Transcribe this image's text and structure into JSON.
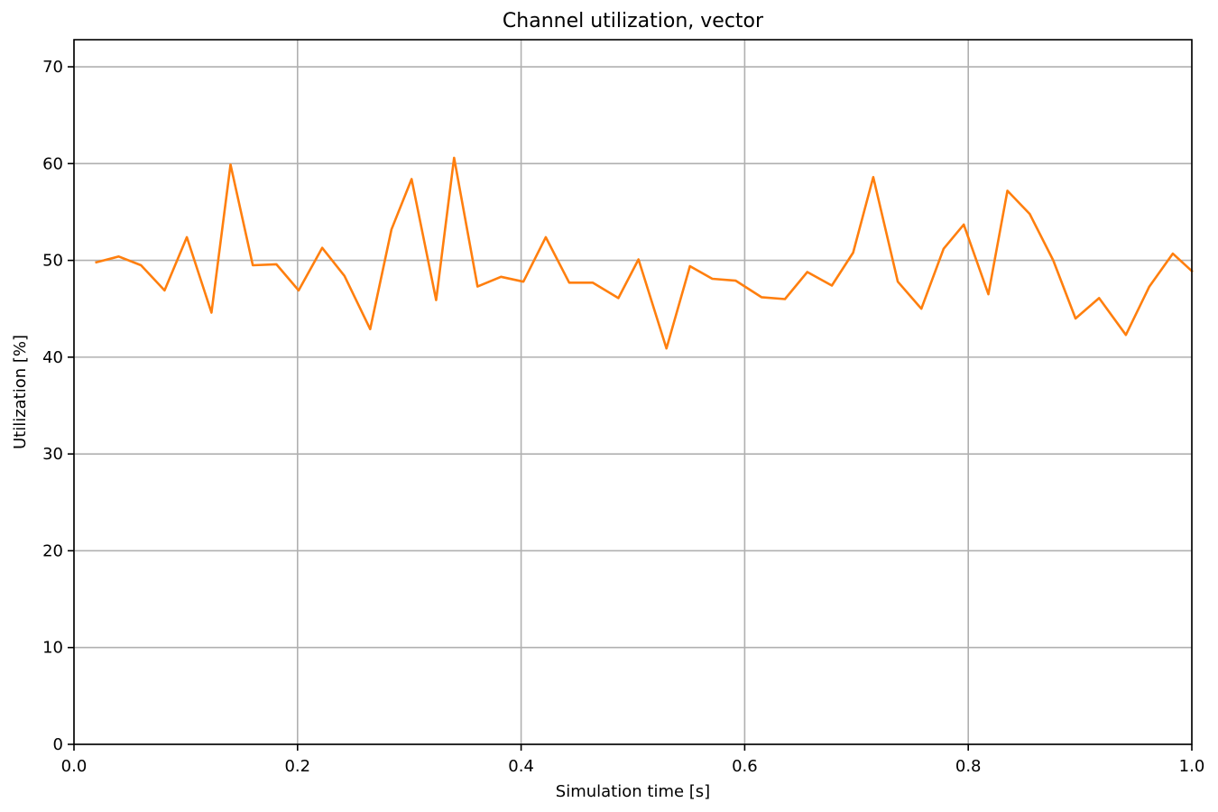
{
  "chart_data": {
    "type": "line",
    "title": "Channel utilization, vector",
    "xlabel": "Simulation time [s]",
    "ylabel": "Utilization [%]",
    "xlim": [
      0.0,
      1.0
    ],
    "ylim": [
      0,
      72.8
    ],
    "xticks": [
      "0.0",
      "0.2",
      "0.4",
      "0.6",
      "0.8",
      "1.0"
    ],
    "yticks": [
      "0",
      "10",
      "20",
      "30",
      "40",
      "50",
      "60",
      "70"
    ],
    "grid": true,
    "series_color": "#ff7f0e",
    "x": [
      0.02,
      0.04,
      0.06,
      0.081,
      0.101,
      0.123,
      0.14,
      0.16,
      0.181,
      0.201,
      0.222,
      0.242,
      0.265,
      0.284,
      0.302,
      0.324,
      0.34,
      0.361,
      0.382,
      0.402,
      0.422,
      0.443,
      0.464,
      0.487,
      0.505,
      0.53,
      0.551,
      0.571,
      0.592,
      0.615,
      0.636,
      0.656,
      0.678,
      0.697,
      0.715,
      0.737,
      0.758,
      0.778,
      0.796,
      0.818,
      0.835,
      0.855,
      0.876,
      0.896,
      0.917,
      0.941,
      0.962,
      0.983,
      1.0
    ],
    "y": [
      49.8,
      50.4,
      49.5,
      46.9,
      52.4,
      44.6,
      59.9,
      49.5,
      49.6,
      46.9,
      51.3,
      48.4,
      42.9,
      53.2,
      58.4,
      45.9,
      60.6,
      47.3,
      48.3,
      47.8,
      52.4,
      47.7,
      47.7,
      46.1,
      50.1,
      40.9,
      49.4,
      48.1,
      47.9,
      46.2,
      46.0,
      48.8,
      47.4,
      50.8,
      58.6,
      47.8,
      45.0,
      51.2,
      53.7,
      46.5,
      57.2,
      54.8,
      50.0,
      44.0,
      46.1,
      42.3,
      47.3,
      50.7,
      48.9
    ]
  }
}
